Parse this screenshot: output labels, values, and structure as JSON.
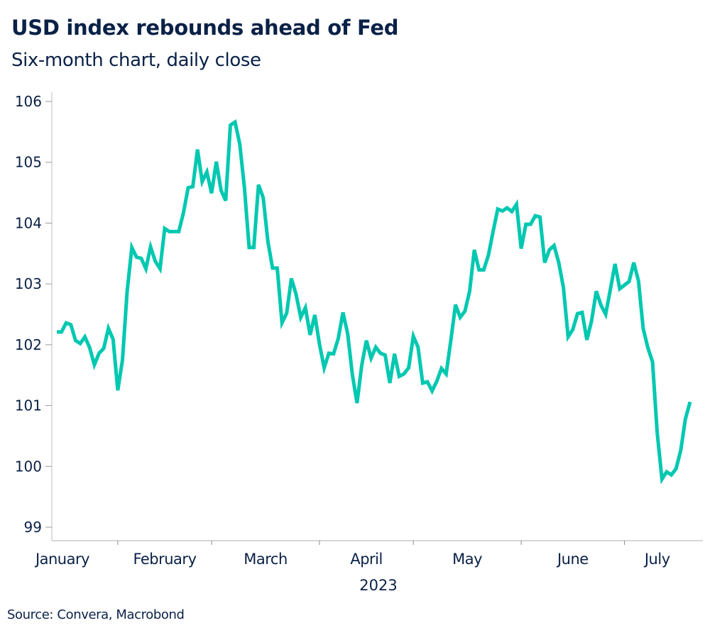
{
  "header": {
    "title": "USD index rebounds ahead of Fed",
    "subtitle": "Six-month chart, daily close"
  },
  "footer": {
    "source": "Source: Convera, Macrobond"
  },
  "colors": {
    "line": "#00c8b0",
    "text": "#0a2147",
    "axis": "#c8c8c8"
  },
  "chart_data": {
    "type": "line",
    "title": "USD index rebounds ahead of Fed",
    "subtitle": "Six-month chart, daily close",
    "xlabel": "2023",
    "ylabel": "",
    "ylim": [
      99,
      106
    ],
    "yticks": [
      99,
      100,
      101,
      102,
      103,
      104,
      105,
      106
    ],
    "xticks": [
      "January",
      "February",
      "March",
      "April",
      "May",
      "June",
      "July"
    ],
    "month_boundaries_index": [
      13,
      33,
      56,
      76,
      99,
      121
    ],
    "grid": false,
    "legend": "none",
    "series": [
      {
        "name": "USD index",
        "values": [
          102.21,
          102.21,
          102.36,
          102.33,
          102.07,
          102.02,
          102.13,
          101.95,
          101.67,
          101.86,
          101.94,
          102.27,
          102.09,
          101.25,
          101.75,
          102.88,
          103.6,
          103.44,
          103.42,
          103.25,
          103.61,
          103.37,
          103.25,
          103.91,
          103.86,
          103.86,
          103.86,
          104.17,
          104.58,
          104.6,
          105.21,
          104.68,
          104.84,
          104.49,
          105.01,
          104.54,
          104.37,
          105.61,
          105.66,
          105.3,
          104.58,
          103.6,
          103.6,
          104.63,
          104.42,
          103.7,
          103.26,
          103.26,
          102.36,
          102.52,
          103.09,
          102.83,
          102.45,
          102.61,
          102.16,
          102.49,
          102.01,
          101.62,
          101.86,
          101.85,
          102.1,
          102.53,
          102.18,
          101.51,
          101.04,
          101.66,
          102.07,
          101.78,
          101.96,
          101.86,
          101.83,
          101.37,
          101.85,
          101.48,
          101.52,
          101.62,
          102.14,
          101.96,
          101.37,
          101.39,
          101.24,
          101.4,
          101.61,
          101.52,
          102.07,
          102.66,
          102.45,
          102.55,
          102.88,
          103.56,
          103.23,
          103.23,
          103.47,
          103.86,
          104.23,
          104.2,
          104.25,
          104.19,
          104.31,
          103.58,
          103.98,
          103.98,
          104.12,
          104.1,
          103.35,
          103.56,
          103.63,
          103.35,
          102.94,
          102.13,
          102.25,
          102.51,
          102.53,
          102.08,
          102.39,
          102.88,
          102.65,
          102.5,
          102.91,
          103.33,
          102.92,
          102.98,
          103.04,
          103.35,
          103.05,
          102.27,
          101.95,
          101.72,
          100.55,
          99.79,
          99.91,
          99.86,
          99.96,
          100.26,
          100.78,
          101.06
        ]
      }
    ]
  }
}
